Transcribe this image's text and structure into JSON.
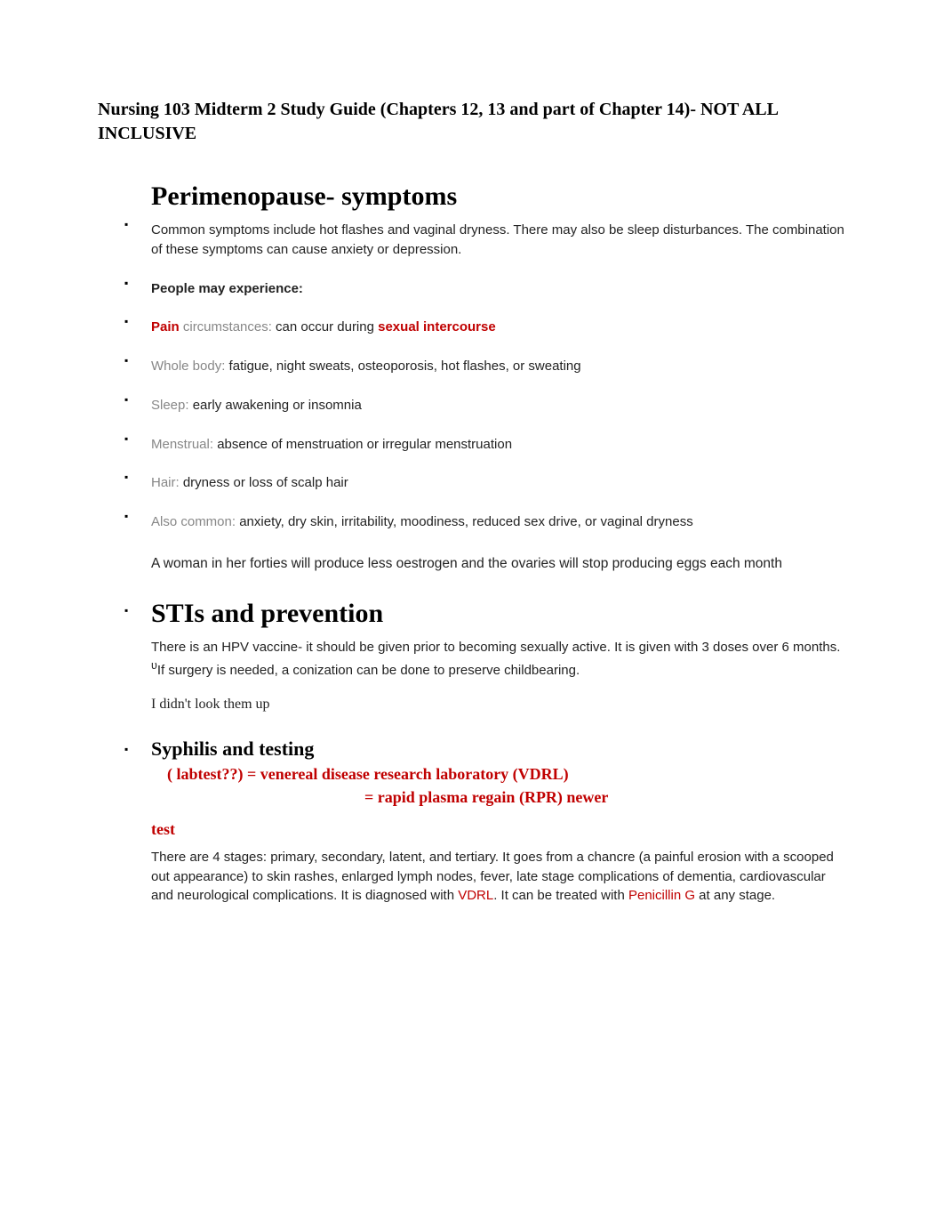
{
  "doc_title": "Nursing 103 Midterm 2 Study Guide (Chapters 12, 13 and part of Chapter 14)- NOT ALL INCLUSIVE",
  "section1": {
    "heading": "Perimenopause- symptoms",
    "intro": "Common symptoms include hot flashes and vaginal dryness. There may also be sleep disturbances. The combination of these symptoms can cause anxiety or depression.",
    "link_placeholder": " ",
    "experience_label": "People may experience:",
    "items": [
      {
        "label": "Pain",
        "label_class": "red bold",
        "sep": " circumstances:",
        "sep_class": "grey",
        "text_pre": " can occur during ",
        "highlight": "sexual intercourse",
        "highlight_class": "red bold",
        "text_post": ""
      },
      {
        "label": "Whole body:",
        "label_class": "grey",
        "text": " fatigue, night sweats, osteoporosis, hot flashes, or sweating"
      },
      {
        "label": "Sleep:",
        "label_class": "grey",
        "text": " early awakening or insomnia"
      },
      {
        "label": "Menstrual:",
        "label_class": "grey",
        "text": " absence of menstruation or irregular menstruation"
      },
      {
        "label": "Hair:",
        "label_class": "grey",
        "text": " dryness or loss of scalp hair"
      },
      {
        "label": "Also common:",
        "label_class": "grey",
        "text": " anxiety, dry skin, irritability, moodiness, reduced sex drive, or vaginal dryness"
      }
    ],
    "closing": "A woman in her forties will produce less oestrogen and the ovaries will stop producing eggs each month"
  },
  "section2": {
    "heading": "STIs and prevention",
    "body_pre": "There is an HPV vaccine- it should be given prior to becoming sexually active. It is given with 3 doses over 6 months. ",
    "superscript": "υ",
    "body_post": "If surgery is needed, a conization can be done to preserve childbearing.",
    "note": "I didn't look them up"
  },
  "section3": {
    "heading": "Syphilis and testing",
    "labtest_q": "( labtest??)",
    "lab1": " = venereal disease research laboratory (VDRL)",
    "lab2": "= rapid plasma regain (RPR) newer",
    "test_word": "test",
    "body_a": "There are 4 stages: primary, secondary, latent, and tertiary. It goes from a chancre (a painful erosion with a scooped out appearance) to skin rashes, enlarged lymph nodes, fever, late stage complications of dementia, cardiovascular and neurological complications. It is diagnosed with ",
    "vdrl": "VDRL",
    "body_b": ". It can be treated with ",
    "penicillin": "Penicillin G",
    "body_c": " at any stage."
  }
}
